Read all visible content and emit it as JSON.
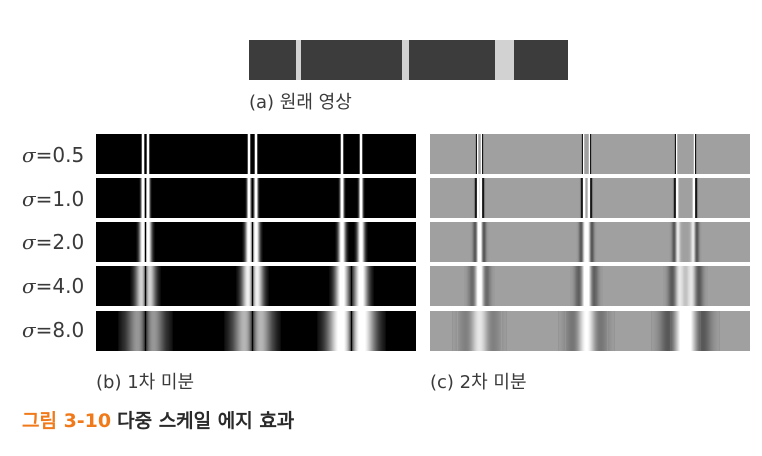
{
  "captions": {
    "original": "(a) 원래 영상",
    "first_derivative": "(b) 1차 미분",
    "second_derivative": "(c) 2차 미분"
  },
  "scales": [
    {
      "symbol": "σ",
      "value": "=0.5",
      "sigma": 0.5
    },
    {
      "symbol": "σ",
      "value": "=1.0",
      "sigma": 1.0
    },
    {
      "symbol": "σ",
      "value": "=2.0",
      "sigma": 2.0
    },
    {
      "symbol": "σ",
      "value": "=4.0",
      "sigma": 4.0
    },
    {
      "symbol": "σ",
      "value": "=8.0",
      "sigma": 8.0
    }
  ],
  "figure": {
    "number": "그림 3-10",
    "title": "다중 스케일 에지 효과"
  },
  "colors": {
    "accent": "#f07a1a",
    "signal_dark": "#3c3c3c",
    "signal_light": "#d2d2d2"
  }
}
